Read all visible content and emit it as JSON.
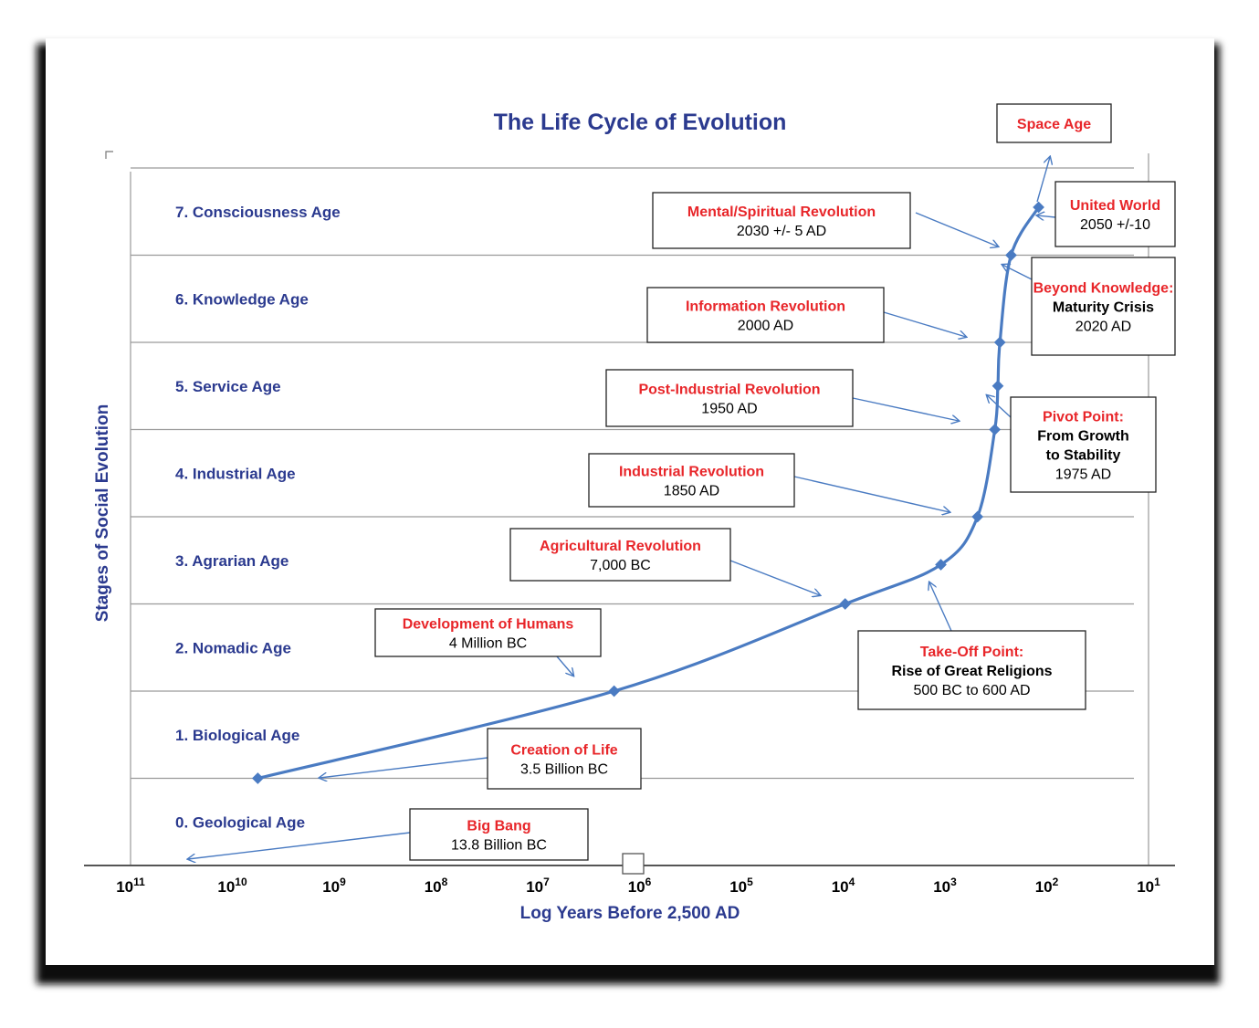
{
  "colors": {
    "title": "#2b3a8f",
    "age_label": "#2b3a8f",
    "curve": "#4a7bc2",
    "event_heading": "#e8262a",
    "gridline": "#9a9a9a"
  },
  "chart_data": {
    "type": "line",
    "title": "The Life Cycle of Evolution",
    "xlabel": "Log Years Before 2,500 AD",
    "ylabel": "Stages of Social Evolution",
    "x_scale": "log",
    "x_reversed": true,
    "xlim_exponents": [
      11,
      1
    ],
    "x_ticks": [
      {
        "base": "10",
        "exp": "11"
      },
      {
        "base": "10",
        "exp": "10"
      },
      {
        "base": "10",
        "exp": "9"
      },
      {
        "base": "10",
        "exp": "8"
      },
      {
        "base": "10",
        "exp": "7"
      },
      {
        "base": "10",
        "exp": "6"
      },
      {
        "base": "10",
        "exp": "5"
      },
      {
        "base": "10",
        "exp": "4"
      },
      {
        "base": "10",
        "exp": "3"
      },
      {
        "base": "10",
        "exp": "2"
      },
      {
        "base": "10",
        "exp": "1"
      }
    ],
    "ylim": [
      0,
      8
    ],
    "stages": [
      "0. Geological Age",
      "1. Biological Age",
      "2. Nomadic Age",
      "3. Agrarian Age",
      "4. Industrial Age",
      "5. Service Age",
      "6. Knowledge Age",
      "7. Consciousness Age"
    ],
    "series": [
      {
        "name": "Social evolution",
        "points": [
          {
            "log_years": 9.75,
            "stage": 1.0
          },
          {
            "log_years": 6.25,
            "stage": 2.0
          },
          {
            "log_years": 3.98,
            "stage": 3.0
          },
          {
            "log_years": 3.04,
            "stage": 3.45
          },
          {
            "log_years": 2.68,
            "stage": 4.0
          },
          {
            "log_years": 2.51,
            "stage": 5.0
          },
          {
            "log_years": 2.48,
            "stage": 5.5
          },
          {
            "log_years": 2.46,
            "stage": 6.0
          },
          {
            "log_years": 2.35,
            "stage": 7.0
          },
          {
            "log_years": 2.08,
            "stage": 7.55
          }
        ]
      }
    ],
    "annotations": [
      {
        "heading": "Big Bang",
        "lines": [
          "13.8 Billion BC"
        ]
      },
      {
        "heading": "Creation of Life",
        "lines": [
          "3.5 Billion BC"
        ]
      },
      {
        "heading": "Development of Humans",
        "lines": [
          "4 Million BC"
        ]
      },
      {
        "heading": "Agricultural Revolution",
        "lines": [
          "7,000 BC"
        ]
      },
      {
        "heading": "Take-Off Point:",
        "lines": [
          "Rise of Great Religions",
          "500 BC to 600 AD"
        ]
      },
      {
        "heading": "Industrial Revolution",
        "lines": [
          "1850 AD"
        ]
      },
      {
        "heading": "Post-Industrial Revolution",
        "lines": [
          "1950 AD"
        ]
      },
      {
        "heading": "Pivot Point:",
        "lines": [
          "From Growth",
          "to Stability",
          "1975 AD"
        ]
      },
      {
        "heading": "Information Revolution",
        "lines": [
          "2000 AD"
        ]
      },
      {
        "heading": "Beyond Knowledge:",
        "lines": [
          "Maturity Crisis",
          "2020 AD"
        ]
      },
      {
        "heading": "Mental/Spiritual Revolution",
        "lines": [
          "2030 +/- 5 AD"
        ]
      },
      {
        "heading": "United World",
        "lines": [
          "2050 +/-10"
        ]
      },
      {
        "heading": "Space Age",
        "lines": []
      }
    ]
  }
}
